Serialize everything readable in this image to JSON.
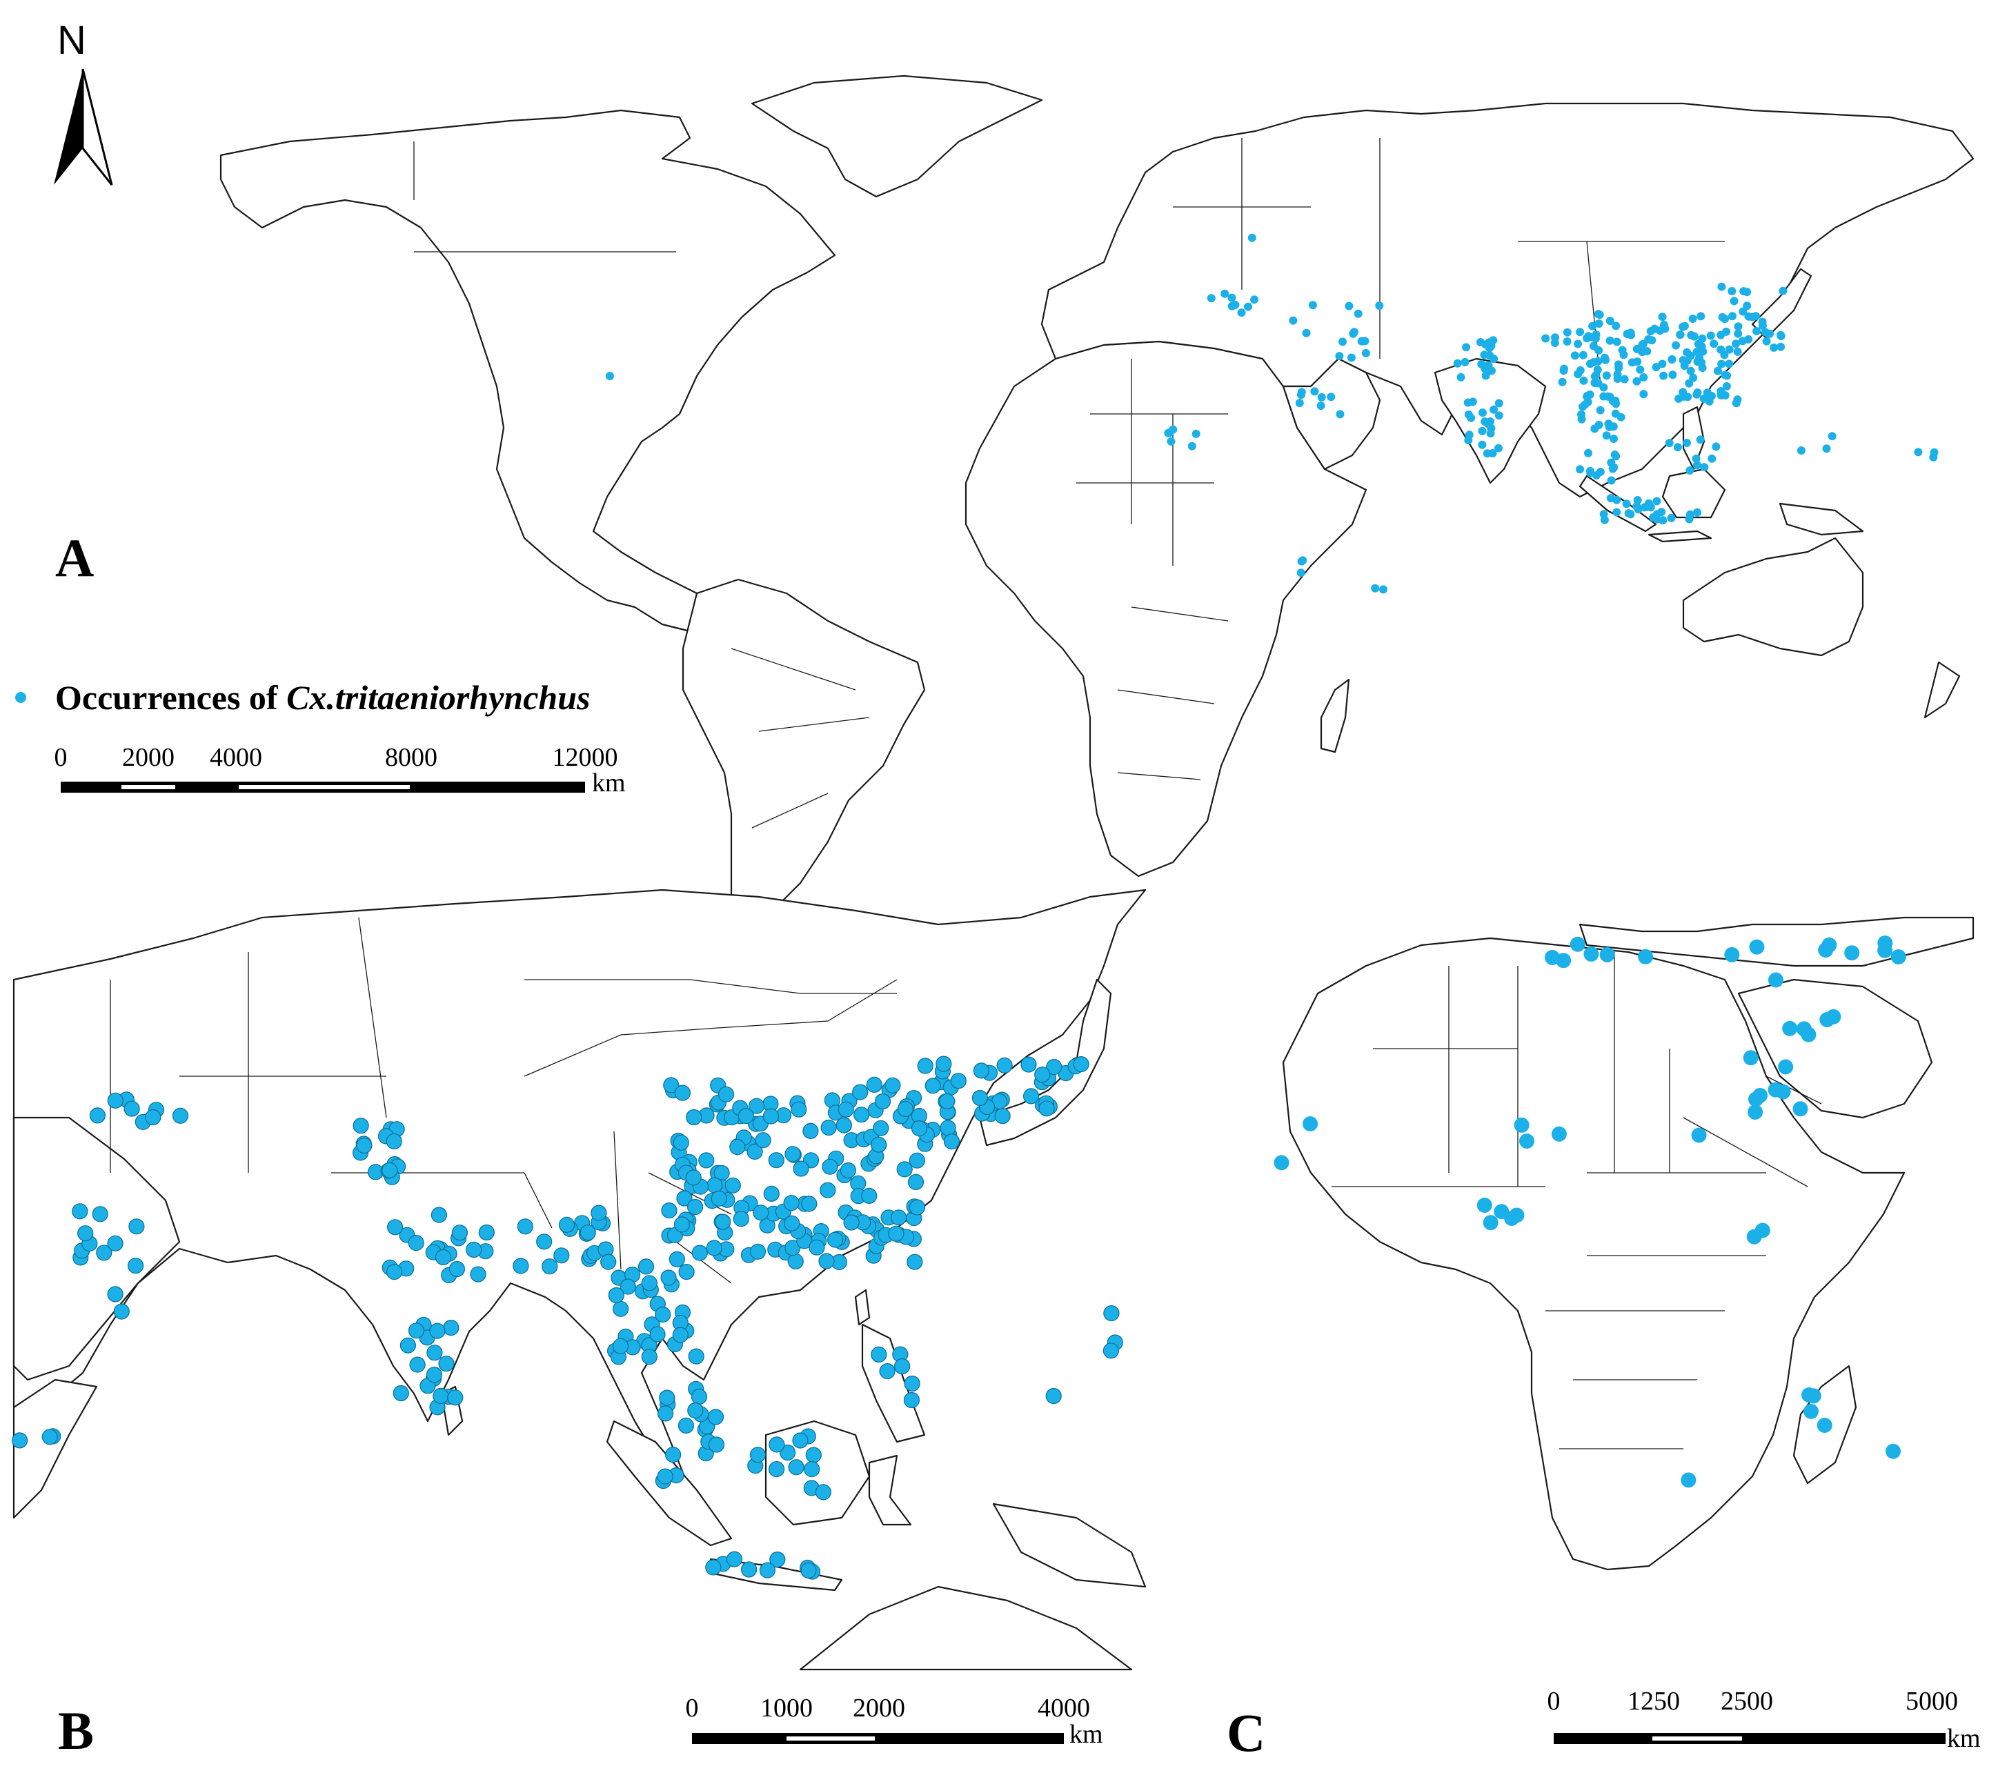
{
  "north_label": "N",
  "panels": {
    "a": {
      "letter": "A"
    },
    "b": {
      "letter": "B"
    },
    "c": {
      "letter": "C"
    }
  },
  "legend": {
    "prefix": "Occurrences of ",
    "species": "Cx.tritaeniorhynchus",
    "marker_color": "#1bb0e8"
  },
  "scalebars": {
    "a": {
      "ticks": [
        "0",
        "2000",
        "4000",
        "8000",
        "12000"
      ],
      "unit": "km"
    },
    "b": {
      "ticks": [
        "0",
        "1000",
        "2000",
        "4000"
      ],
      "unit": "km"
    },
    "c": {
      "ticks": [
        "0",
        "1250",
        "2500",
        "5000"
      ],
      "unit": "km"
    }
  },
  "colors": {
    "occurrence": "#1bb0e8",
    "outline": "#1a1a1a",
    "background": "#ffffff"
  }
}
